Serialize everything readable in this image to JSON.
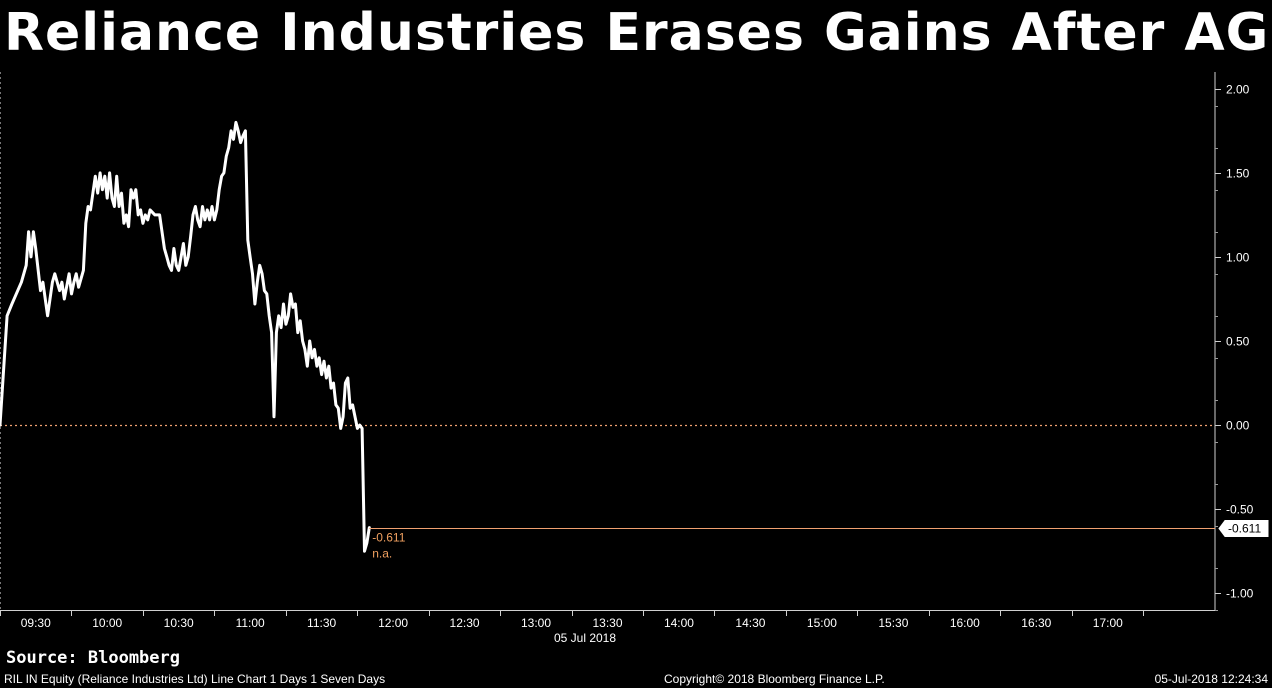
{
  "title": "Reliance Industries Erases Gains After AGM",
  "source": "Source: Bloomberg",
  "footer": {
    "description": "RIL IN Equity (Reliance Industries Ltd) Line Chart 1 Days 1 Seven Days",
    "copyright": "Copyright© 2018 Bloomberg Finance L.P.",
    "timestamp": "05-Jul-2018 12:24:34"
  },
  "colors": {
    "background": "#000000",
    "line": "#ffffff",
    "reference": "#f0a070",
    "last_label_text": "#f0a060"
  },
  "chart_data": {
    "type": "line",
    "x_axis": {
      "date_label": "05 Jul 2018",
      "ticks": [
        "09:30",
        "10:00",
        "10:30",
        "11:00",
        "11:30",
        "12:00",
        "12:30",
        "13:00",
        "13:30",
        "14:00",
        "14:30",
        "15:00",
        "15:30",
        "16:00",
        "16:30",
        "17:00"
      ],
      "xlim": [
        "09:15",
        "17:45"
      ]
    },
    "y_axis": {
      "ticks": [
        2.0,
        1.5,
        1.0,
        0.5,
        0.0,
        -0.5,
        -1.0
      ],
      "tick_labels": [
        "2.00",
        "1.50",
        "1.00",
        "0.50",
        "0.00",
        "-0.50",
        "-1.00"
      ],
      "ylim": [
        -1.1,
        2.1
      ],
      "position": "right"
    },
    "zero_line": 0.0,
    "last_value": -0.611,
    "last_value_label": "-0.611",
    "last_value_note": "n.a.",
    "series": [
      {
        "values": [
          [
            "09:15",
            0.0
          ],
          [
            "09:18",
            0.65
          ],
          [
            "09:20",
            0.72
          ],
          [
            "09:24",
            0.85
          ],
          [
            "09:26",
            0.95
          ],
          [
            "09:27",
            1.15
          ],
          [
            "09:28",
            1.0
          ],
          [
            "09:29",
            1.15
          ],
          [
            "09:30",
            1.05
          ],
          [
            "09:32",
            0.8
          ],
          [
            "09:33",
            0.85
          ],
          [
            "09:35",
            0.65
          ],
          [
            "09:36",
            0.75
          ],
          [
            "09:37",
            0.85
          ],
          [
            "09:38",
            0.9
          ],
          [
            "09:40",
            0.8
          ],
          [
            "09:41",
            0.85
          ],
          [
            "09:42",
            0.75
          ],
          [
            "09:44",
            0.9
          ],
          [
            "09:45",
            0.78
          ],
          [
            "09:46",
            0.85
          ],
          [
            "09:47",
            0.9
          ],
          [
            "09:48",
            0.82
          ],
          [
            "09:50",
            0.92
          ],
          [
            "09:51",
            1.2
          ],
          [
            "09:52",
            1.3
          ],
          [
            "09:53",
            1.28
          ],
          [
            "09:55",
            1.48
          ],
          [
            "09:56",
            1.38
          ],
          [
            "09:57",
            1.5
          ],
          [
            "09:58",
            1.4
          ],
          [
            "09:59",
            1.48
          ],
          [
            "10:00",
            1.35
          ],
          [
            "10:01",
            1.5
          ],
          [
            "10:02",
            1.35
          ],
          [
            "10:03",
            1.3
          ],
          [
            "10:04",
            1.48
          ],
          [
            "10:05",
            1.3
          ],
          [
            "10:06",
            1.38
          ],
          [
            "10:07",
            1.2
          ],
          [
            "10:08",
            1.25
          ],
          [
            "10:09",
            1.18
          ],
          [
            "10:10",
            1.4
          ],
          [
            "10:11",
            1.35
          ],
          [
            "10:12",
            1.4
          ],
          [
            "10:13",
            1.25
          ],
          [
            "10:14",
            1.28
          ],
          [
            "10:15",
            1.2
          ],
          [
            "10:16",
            1.25
          ],
          [
            "10:17",
            1.22
          ],
          [
            "10:18",
            1.28
          ],
          [
            "10:20",
            1.25
          ],
          [
            "10:22",
            1.25
          ],
          [
            "10:23",
            1.15
          ],
          [
            "10:24",
            1.05
          ],
          [
            "10:25",
            1.0
          ],
          [
            "10:26",
            0.95
          ],
          [
            "10:27",
            0.92
          ],
          [
            "10:28",
            1.05
          ],
          [
            "10:29",
            0.95
          ],
          [
            "10:30",
            0.92
          ],
          [
            "10:31",
            1.0
          ],
          [
            "10:32",
            1.08
          ],
          [
            "10:33",
            0.95
          ],
          [
            "10:34",
            1.0
          ],
          [
            "10:35",
            1.12
          ],
          [
            "10:36",
            1.25
          ],
          [
            "10:37",
            1.3
          ],
          [
            "10:38",
            1.22
          ],
          [
            "10:39",
            1.18
          ],
          [
            "10:40",
            1.3
          ],
          [
            "10:41",
            1.22
          ],
          [
            "10:42",
            1.28
          ],
          [
            "10:43",
            1.22
          ],
          [
            "10:44",
            1.3
          ],
          [
            "10:45",
            1.22
          ],
          [
            "10:46",
            1.28
          ],
          [
            "10:47",
            1.4
          ],
          [
            "10:48",
            1.48
          ],
          [
            "10:49",
            1.5
          ],
          [
            "10:50",
            1.6
          ],
          [
            "10:51",
            1.65
          ],
          [
            "10:52",
            1.75
          ],
          [
            "10:53",
            1.7
          ],
          [
            "10:54",
            1.8
          ],
          [
            "10:55",
            1.75
          ],
          [
            "10:56",
            1.68
          ],
          [
            "10:57",
            1.72
          ],
          [
            "10:58",
            1.75
          ],
          [
            "10:59",
            1.1
          ],
          [
            "11:00",
            1.0
          ],
          [
            "11:01",
            0.9
          ],
          [
            "11:02",
            0.72
          ],
          [
            "11:03",
            0.85
          ],
          [
            "11:04",
            0.95
          ],
          [
            "11:05",
            0.9
          ],
          [
            "11:06",
            0.8
          ],
          [
            "11:07",
            0.78
          ],
          [
            "11:08",
            0.65
          ],
          [
            "11:09",
            0.55
          ],
          [
            "11:10",
            0.05
          ],
          [
            "11:11",
            0.55
          ],
          [
            "11:12",
            0.65
          ],
          [
            "11:13",
            0.58
          ],
          [
            "11:14",
            0.72
          ],
          [
            "11:15",
            0.6
          ],
          [
            "11:16",
            0.65
          ],
          [
            "11:17",
            0.78
          ],
          [
            "11:18",
            0.7
          ],
          [
            "11:19",
            0.72
          ],
          [
            "11:20",
            0.55
          ],
          [
            "11:21",
            0.62
          ],
          [
            "11:22",
            0.5
          ],
          [
            "11:23",
            0.45
          ],
          [
            "11:24",
            0.35
          ],
          [
            "11:25",
            0.5
          ],
          [
            "11:26",
            0.4
          ],
          [
            "11:27",
            0.45
          ],
          [
            "11:28",
            0.35
          ],
          [
            "11:29",
            0.4
          ],
          [
            "11:30",
            0.3
          ],
          [
            "11:31",
            0.38
          ],
          [
            "11:32",
            0.28
          ],
          [
            "11:33",
            0.35
          ],
          [
            "11:34",
            0.22
          ],
          [
            "11:35",
            0.25
          ],
          [
            "11:36",
            0.12
          ],
          [
            "11:37",
            0.1
          ],
          [
            "11:38",
            -0.02
          ],
          [
            "11:39",
            0.05
          ],
          [
            "11:40",
            0.25
          ],
          [
            "11:41",
            0.28
          ],
          [
            "11:42",
            0.1
          ],
          [
            "11:43",
            0.12
          ],
          [
            "11:44",
            0.05
          ],
          [
            "11:45",
            -0.02
          ],
          [
            "11:46",
            0.0
          ],
          [
            "11:47",
            -0.02
          ],
          [
            "11:48",
            -0.75
          ],
          [
            "11:49",
            -0.7
          ],
          [
            "11:50",
            -0.61
          ]
        ]
      }
    ]
  }
}
